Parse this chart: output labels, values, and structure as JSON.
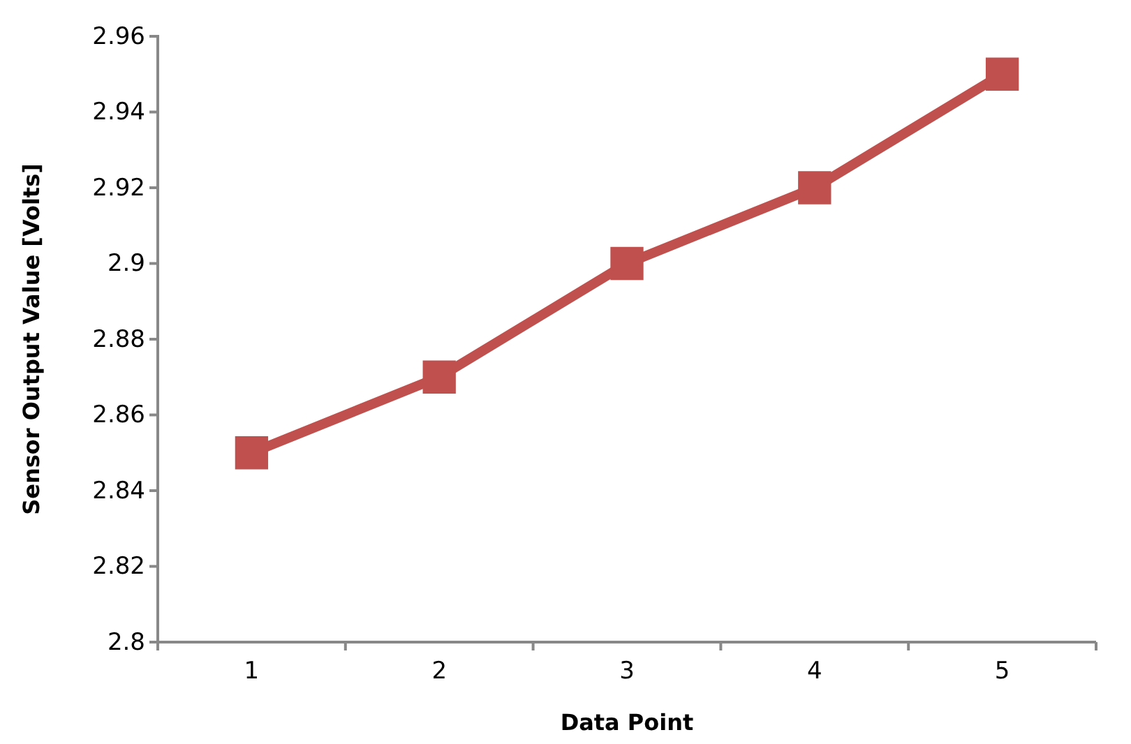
{
  "chart_data": {
    "type": "line",
    "xlabel": "Data Point",
    "ylabel": "Sensor Output Value [Volts]",
    "categories": [
      "1",
      "2",
      "3",
      "4",
      "5"
    ],
    "series": [
      {
        "color": "#c0504d",
        "values": [
          2.85,
          2.87,
          2.9,
          2.92,
          2.95
        ]
      }
    ],
    "ylim": [
      2.8,
      2.96
    ],
    "yticks": [
      2.8,
      2.82,
      2.84,
      2.86,
      2.88,
      2.9,
      2.92,
      2.94,
      2.96
    ],
    "grid": false,
    "marker": "square",
    "line_style": "solid"
  }
}
